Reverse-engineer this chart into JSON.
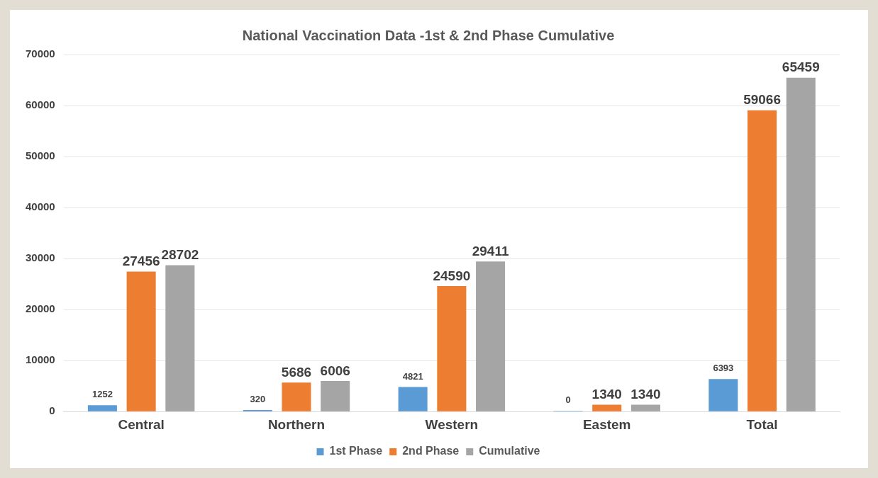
{
  "chart_data": {
    "type": "bar",
    "title": "National Vaccination Data -1st & 2nd Phase Cumulative",
    "categories": [
      "Central",
      "Northern",
      "Western",
      "Eastem",
      "Total"
    ],
    "series": [
      {
        "name": "1st Phase",
        "color": "#5b9bd5",
        "values": [
          1252,
          320,
          4821,
          0,
          6393
        ]
      },
      {
        "name": "2nd Phase",
        "color": "#ed7d31",
        "values": [
          27456,
          5686,
          24590,
          1340,
          59066
        ]
      },
      {
        "name": "Cumulative",
        "color": "#a5a5a5",
        "values": [
          28702,
          6006,
          29411,
          1340,
          65459
        ]
      }
    ],
    "ylim": [
      0,
      70000
    ],
    "yticks": [
      0,
      10000,
      20000,
      30000,
      40000,
      50000,
      60000,
      70000
    ],
    "grid": "y",
    "legend": "bottom",
    "data_labels": true
  }
}
